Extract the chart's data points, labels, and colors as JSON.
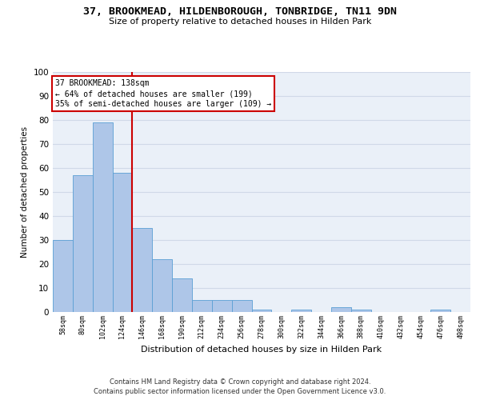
{
  "title": "37, BROOKMEAD, HILDENBOROUGH, TONBRIDGE, TN11 9DN",
  "subtitle": "Size of property relative to detached houses in Hilden Park",
  "xlabel": "Distribution of detached houses by size in Hilden Park",
  "ylabel": "Number of detached properties",
  "footer_line1": "Contains HM Land Registry data © Crown copyright and database right 2024.",
  "footer_line2": "Contains public sector information licensed under the Open Government Licence v3.0.",
  "bin_labels": [
    "58sqm",
    "80sqm",
    "102sqm",
    "124sqm",
    "146sqm",
    "168sqm",
    "190sqm",
    "212sqm",
    "234sqm",
    "256sqm",
    "278sqm",
    "300sqm",
    "322sqm",
    "344sqm",
    "366sqm",
    "388sqm",
    "410sqm",
    "432sqm",
    "454sqm",
    "476sqm",
    "498sqm"
  ],
  "bar_values": [
    30,
    57,
    79,
    58,
    35,
    22,
    14,
    5,
    5,
    5,
    1,
    0,
    1,
    0,
    2,
    1,
    0,
    0,
    0,
    1,
    0
  ],
  "bar_color": "#aec6e8",
  "bar_edgecolor": "#5a9fd4",
  "grid_color": "#d0d8e8",
  "background_color": "#eaf0f8",
  "annotation_line1": "37 BROOKMEAD: 138sqm",
  "annotation_line2": "← 64% of detached houses are smaller (199)",
  "annotation_line3": "35% of semi-detached houses are larger (109) →",
  "annotation_box_color": "#ffffff",
  "annotation_box_edgecolor": "#cc0000",
  "red_line_bin_index": 4,
  "ylim": [
    0,
    100
  ],
  "yticks": [
    0,
    10,
    20,
    30,
    40,
    50,
    60,
    70,
    80,
    90,
    100
  ]
}
